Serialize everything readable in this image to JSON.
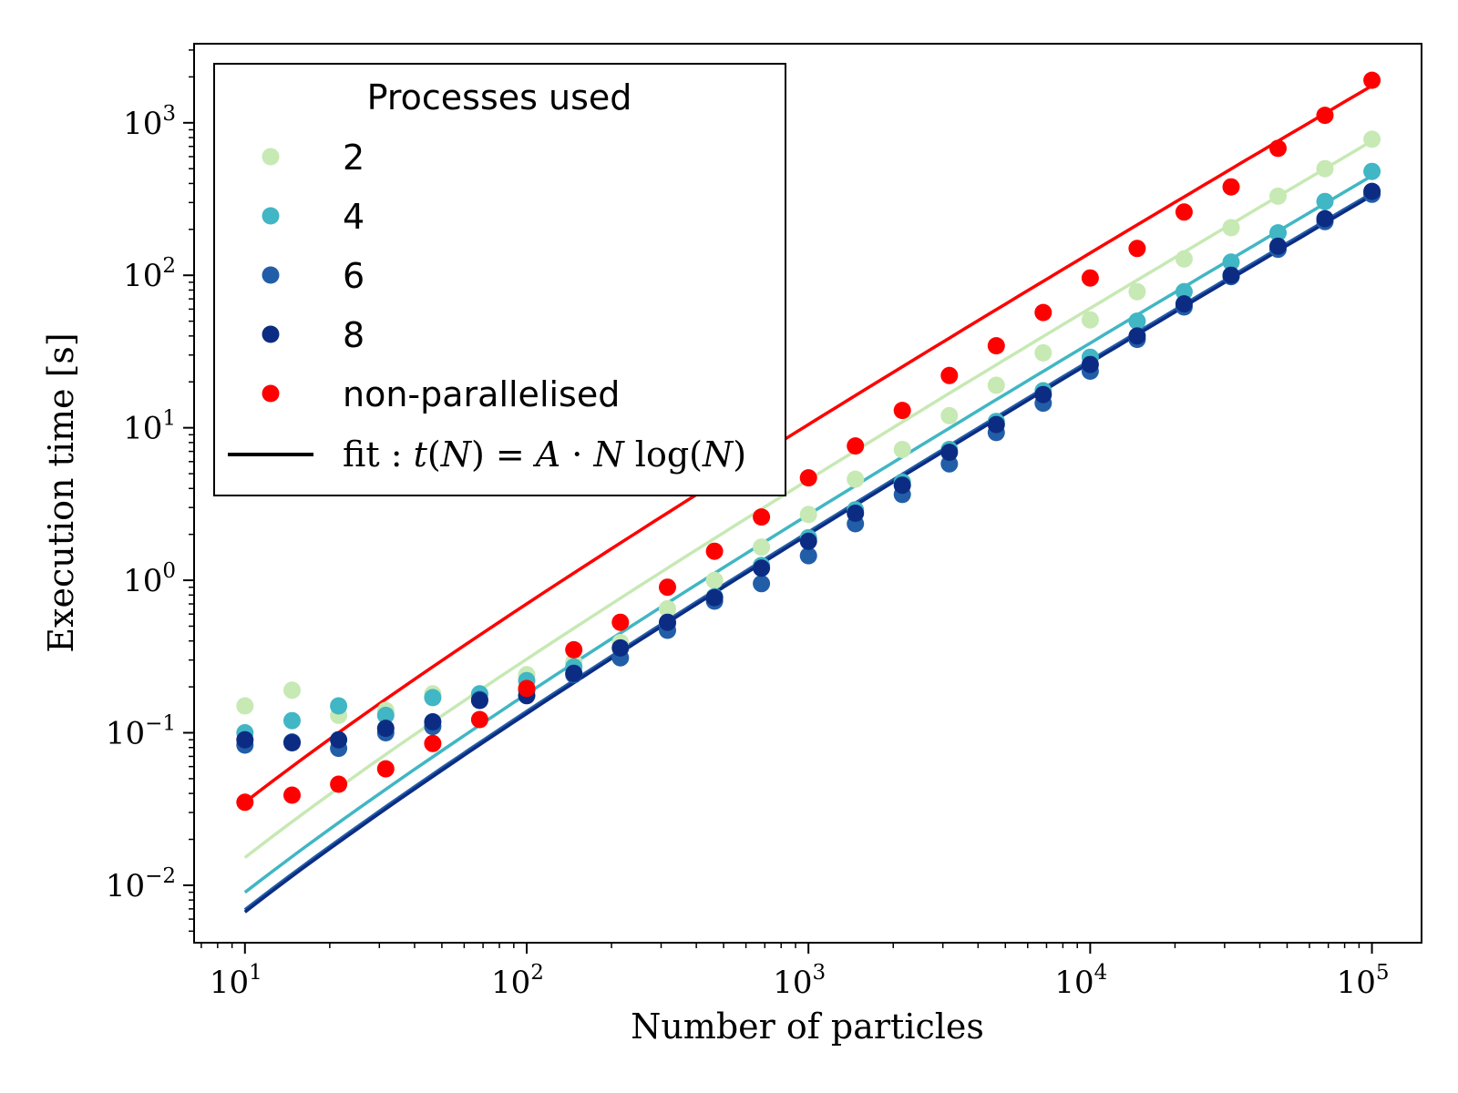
{
  "chart_data": {
    "type": "scatter",
    "xlabel": "Number of particles",
    "ylabel": "Execution time [s]",
    "x_scale": "log",
    "y_scale": "log",
    "xlim": [
      6.6,
      150000
    ],
    "ylim": [
      0.0042,
      3300
    ],
    "x_ticks": [
      {
        "value": 10,
        "label": "10",
        "exp": "1"
      },
      {
        "value": 100,
        "label": "10",
        "exp": "2"
      },
      {
        "value": 1000,
        "label": "10",
        "exp": "3"
      },
      {
        "value": 10000,
        "label": "10",
        "exp": "4"
      },
      {
        "value": 100000,
        "label": "10",
        "exp": "5"
      }
    ],
    "y_ticks": [
      {
        "value": 0.01,
        "label": "10",
        "exp": "−2"
      },
      {
        "value": 0.1,
        "label": "10",
        "exp": "−1"
      },
      {
        "value": 1,
        "label": "10",
        "exp": "0"
      },
      {
        "value": 10,
        "label": "10",
        "exp": "1"
      },
      {
        "value": 100,
        "label": "10",
        "exp": "2"
      },
      {
        "value": 1000,
        "label": "10",
        "exp": "3"
      }
    ],
    "grid": false,
    "legend": {
      "title": "Processes used",
      "placement": "top-left",
      "fit_label": {
        "prefix": "fit : ",
        "t": "t",
        "open": "(",
        "N1": "N",
        "mid": ") = ",
        "A": "A",
        "dot": " · ",
        "N2": "N",
        "log": " log(",
        "N3": "N",
        "close": ")"
      }
    },
    "x": [
      10,
      14.7,
      21.5,
      31.6,
      46.4,
      68.1,
      100,
      147,
      215,
      316,
      464,
      681,
      1000,
      1468,
      2154,
      3162,
      4642,
      6813,
      10000,
      14678,
      21544,
      31623,
      46416,
      68129,
      100000
    ],
    "series": [
      {
        "name": "2",
        "color": "#c7e9b4",
        "values": [
          0.15,
          0.19,
          0.13,
          0.14,
          0.18,
          0.18,
          0.24,
          0.29,
          0.39,
          0.65,
          1.0,
          1.65,
          2.7,
          4.6,
          7.2,
          12,
          19,
          31,
          51,
          78,
          128,
          205,
          330,
          500,
          780
        ],
        "fit_A": 0.00066
      },
      {
        "name": "4",
        "color": "#41b6c4",
        "values": [
          0.1,
          0.12,
          0.15,
          0.13,
          0.17,
          0.18,
          0.22,
          0.27,
          0.36,
          0.52,
          0.78,
          1.25,
          1.9,
          2.9,
          4.4,
          7.2,
          11,
          17.5,
          29,
          50,
          78,
          122,
          190,
          305,
          480
        ],
        "fit_A": 0.00039
      },
      {
        "name": "6",
        "color": "#225ea8",
        "values": [
          0.083,
          0.087,
          0.079,
          0.1,
          0.11,
          0.165,
          0.19,
          0.24,
          0.31,
          0.47,
          0.73,
          0.95,
          1.45,
          2.35,
          3.65,
          5.8,
          9.3,
          14.5,
          23.5,
          38,
          62,
          98,
          148,
          225,
          340
        ],
        "fit_A": 0.0003
      },
      {
        "name": "8",
        "color": "#0c2c84",
        "values": [
          0.09,
          0.086,
          0.09,
          0.107,
          0.118,
          0.163,
          0.175,
          0.245,
          0.36,
          0.53,
          0.77,
          1.2,
          1.8,
          2.75,
          4.2,
          6.9,
          10.5,
          16.5,
          26,
          40,
          65,
          100,
          155,
          235,
          355
        ],
        "fit_A": 0.00029
      },
      {
        "name": "non-parallelised",
        "color": "#ff0000",
        "values": [
          0.035,
          0.039,
          0.046,
          0.058,
          0.085,
          0.122,
          0.195,
          0.35,
          0.53,
          0.9,
          1.55,
          2.6,
          4.7,
          7.6,
          13,
          22,
          34.5,
          57,
          96,
          150,
          260,
          380,
          680,
          1120,
          1900
        ],
        "fit_A": 0.00152
      }
    ]
  }
}
